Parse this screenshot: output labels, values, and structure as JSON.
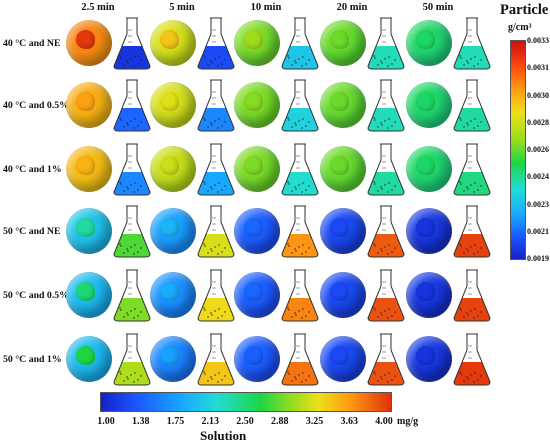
{
  "time_labels": [
    "2.5 min",
    "5 min",
    "10 min",
    "20 min",
    "50 min"
  ],
  "row_labels": [
    "40 °C and NE",
    "40 °C and 0.5%",
    "40 °C and 1%",
    "50 °C and NE",
    "50 °C and 0.5%",
    "50 °C and 1%"
  ],
  "particle_legend": {
    "title": "Particle",
    "unit": "g/cm³",
    "ticks": [
      "0.0033",
      "0.0031",
      "0.0030",
      "0.0028",
      "0.0026",
      "0.0024",
      "0.0023",
      "0.0021",
      "0.0019"
    ]
  },
  "solution_legend": {
    "title": "Solution",
    "unit": "mg/g",
    "ticks": [
      "1.00",
      "1.38",
      "1.75",
      "2.13",
      "2.50",
      "2.88",
      "3.25",
      "3.63",
      "4.00"
    ]
  },
  "colors": {
    "scale": [
      "#1520c8",
      "#1b55ff",
      "#19a8ff",
      "#22dcd6",
      "#1ed644",
      "#96dc1e",
      "#ede018",
      "#ff9a12",
      "#e2300d"
    ]
  },
  "cells": [
    [
      {
        "shell": 0.88,
        "core": 0.99,
        "sol": 0.05
      },
      {
        "shell": 0.7,
        "core": 0.8,
        "sol": 0.1
      },
      {
        "shell": 0.58,
        "core": 0.64,
        "sol": 0.32
      },
      {
        "shell": 0.56,
        "core": 0.58,
        "sol": 0.4
      },
      {
        "shell": 0.45,
        "core": 0.47,
        "sol": 0.4
      }
    ],
    [
      {
        "shell": 0.82,
        "core": 0.86,
        "sol": 0.15
      },
      {
        "shell": 0.7,
        "core": 0.73,
        "sol": 0.2
      },
      {
        "shell": 0.58,
        "core": 0.61,
        "sol": 0.35
      },
      {
        "shell": 0.56,
        "core": 0.58,
        "sol": 0.4
      },
      {
        "shell": 0.45,
        "core": 0.47,
        "sol": 0.42
      }
    ],
    [
      {
        "shell": 0.8,
        "core": 0.83,
        "sol": 0.2
      },
      {
        "shell": 0.68,
        "core": 0.7,
        "sol": 0.25
      },
      {
        "shell": 0.58,
        "core": 0.6,
        "sol": 0.38
      },
      {
        "shell": 0.56,
        "core": 0.58,
        "sol": 0.42
      },
      {
        "shell": 0.45,
        "core": 0.47,
        "sol": 0.45
      }
    ],
    [
      {
        "shell": 0.3,
        "core": 0.42,
        "sol": 0.55
      },
      {
        "shell": 0.22,
        "core": 0.28,
        "sol": 0.72
      },
      {
        "shell": 0.12,
        "core": 0.15,
        "sol": 0.88
      },
      {
        "shell": 0.08,
        "core": 0.1,
        "sol": 0.95
      },
      {
        "shell": 0.04,
        "core": 0.05,
        "sol": 0.98
      }
    ],
    [
      {
        "shell": 0.28,
        "core": 0.46,
        "sol": 0.6
      },
      {
        "shell": 0.2,
        "core": 0.26,
        "sol": 0.76
      },
      {
        "shell": 0.12,
        "core": 0.15,
        "sol": 0.9
      },
      {
        "shell": 0.08,
        "core": 0.1,
        "sol": 0.96
      },
      {
        "shell": 0.04,
        "core": 0.05,
        "sol": 0.98
      }
    ],
    [
      {
        "shell": 0.28,
        "core": 0.5,
        "sol": 0.66
      },
      {
        "shell": 0.18,
        "core": 0.24,
        "sol": 0.8
      },
      {
        "shell": 0.12,
        "core": 0.14,
        "sol": 0.92
      },
      {
        "shell": 0.08,
        "core": 0.1,
        "sol": 0.96
      },
      {
        "shell": 0.04,
        "core": 0.05,
        "sol": 0.99
      }
    ]
  ]
}
